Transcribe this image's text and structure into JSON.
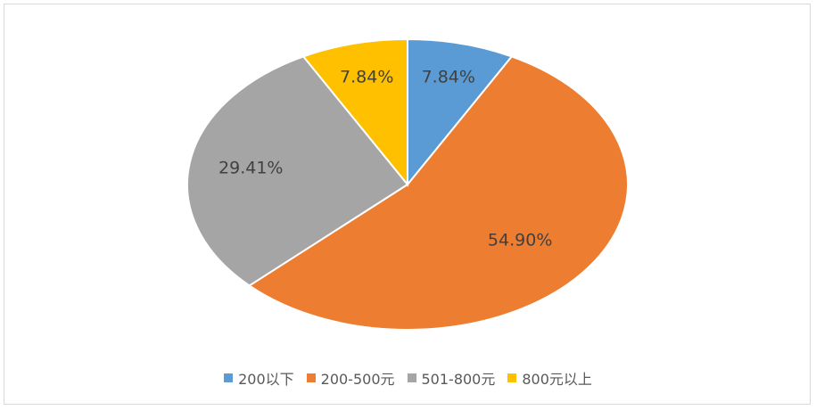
{
  "chart_data": {
    "type": "pie",
    "categories": [
      "200以下",
      "200-500元",
      "501-800元",
      "800元以上"
    ],
    "values": [
      7.84,
      54.9,
      29.41,
      7.84
    ],
    "labels": [
      "7.84%",
      "54.90%",
      "29.41%",
      "7.84%"
    ],
    "colors": [
      "#5b9bd5",
      "#ed7d31",
      "#a5a5a5",
      "#ffc000"
    ],
    "start_angle_deg": 0,
    "direction": "clockwise",
    "legend": "bottom",
    "title": ""
  }
}
